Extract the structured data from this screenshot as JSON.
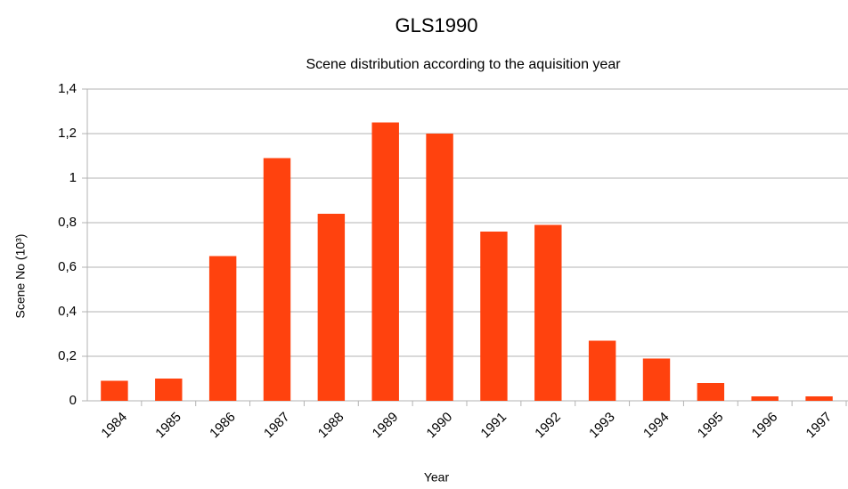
{
  "chart_data": {
    "type": "bar",
    "title": "GLS1990",
    "subtitle": "Scene distribution according to the aquisition year",
    "x_label": "Year",
    "y_label": "Scene No (10³)",
    "categories": [
      "1984",
      "1985",
      "1986",
      "1987",
      "1988",
      "1989",
      "1990",
      "1991",
      "1992",
      "1993",
      "1994",
      "1995",
      "1996",
      "1997"
    ],
    "values": [
      0.09,
      0.1,
      0.65,
      1.09,
      0.84,
      1.25,
      1.2,
      0.76,
      0.79,
      0.27,
      0.19,
      0.08,
      0.02,
      0.02
    ],
    "color": "#ff420e",
    "ylim": [
      0,
      1.4
    ],
    "yticks": [
      0,
      {
        "value": 0.2,
        "label": "0,2"
      },
      {
        "value": 0.4,
        "label": "0,4"
      },
      {
        "value": 0.6,
        "label": "0,6"
      },
      {
        "value": 0.8,
        "label": "0,8"
      },
      1,
      {
        "value": 1.2,
        "label": "1,2"
      },
      {
        "value": 1.4,
        "label": "1,4"
      }
    ],
    "grid": true
  }
}
